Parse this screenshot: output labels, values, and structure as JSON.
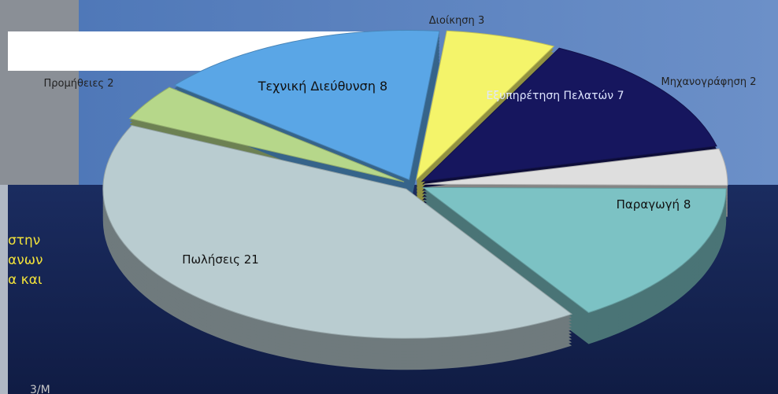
{
  "chart_data": {
    "type": "pie",
    "categories": [
      "Διοίκηση",
      "Εξυπηρέτηση Πελατών",
      "Μηχανογράφηση",
      "Παραγωγή",
      "Πωλήσεις",
      "Προμήθειες",
      "Τεχνική Διεύθυνση"
    ],
    "values": [
      3,
      7,
      2,
      8,
      21,
      2,
      8
    ],
    "colors": [
      "#f4f46a",
      "#16165e",
      "#dedede",
      "#7cc2c4",
      "#b9ccd0",
      "#b6d78a",
      "#5aa6e6"
    ]
  },
  "slide_fragments": [
    "στην",
    "ανων",
    "α και"
  ],
  "page_number": "3/Μ"
}
